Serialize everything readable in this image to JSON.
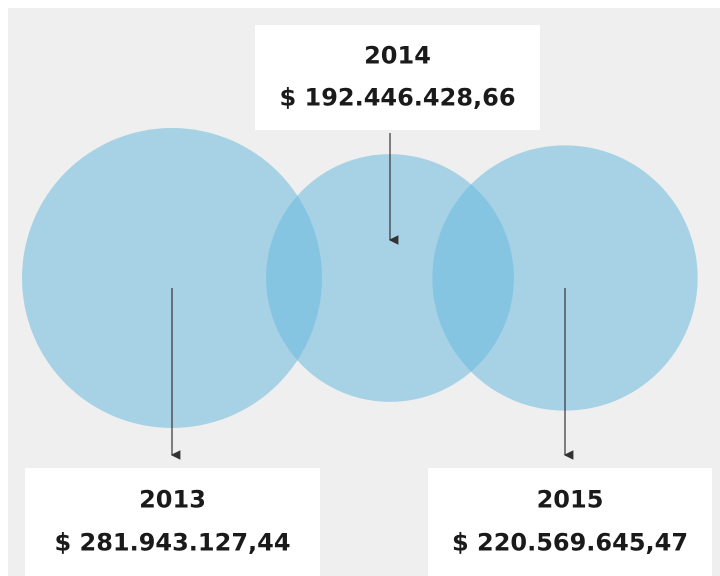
{
  "chart_data": {
    "type": "bubble",
    "categories": [
      "2013",
      "2014",
      "2015"
    ],
    "values": [
      281943127.44,
      192446428.66,
      220569645.47
    ],
    "value_labels": [
      "$ 281.943.127,44",
      "$ 192.446.428,66",
      "$ 220.569.645,47"
    ],
    "color": "#6cbadf"
  }
}
